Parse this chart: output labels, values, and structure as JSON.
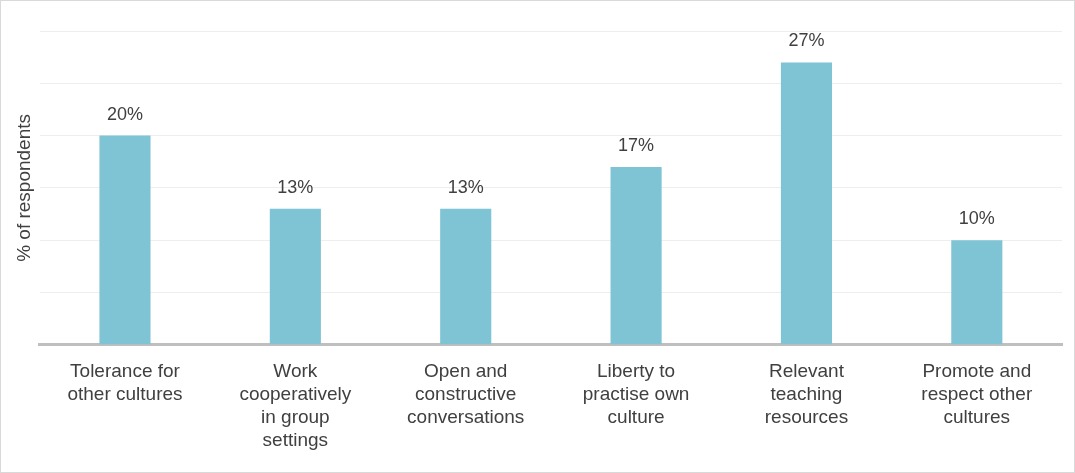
{
  "chart_data": {
    "type": "bar",
    "ylabel": "% of respondents",
    "categories": [
      "Tolerance for other cultures",
      "Work cooperatively in group settings",
      "Open and constructive conversations",
      "Liberty to practise own culture",
      "Relevant teaching resources",
      "Promote and respect other cultures"
    ],
    "values": [
      20,
      13,
      13,
      17,
      27,
      10
    ],
    "value_labels": [
      "20%",
      "13%",
      "13%",
      "17%",
      "27%",
      "10%"
    ],
    "color": "#7fc4d4",
    "ylim": [
      0,
      30
    ],
    "yticks": [
      {
        "value": 0,
        "label": null
      },
      {
        "value": 5,
        "label": null
      },
      {
        "value": 10,
        "label": null
      },
      {
        "value": 15,
        "label": null
      },
      {
        "value": 20,
        "label": null
      },
      {
        "value": 25,
        "label": null
      },
      {
        "value": 30,
        "label": null
      }
    ],
    "grid": "y",
    "legend": false,
    "tick_labels": "x"
  }
}
